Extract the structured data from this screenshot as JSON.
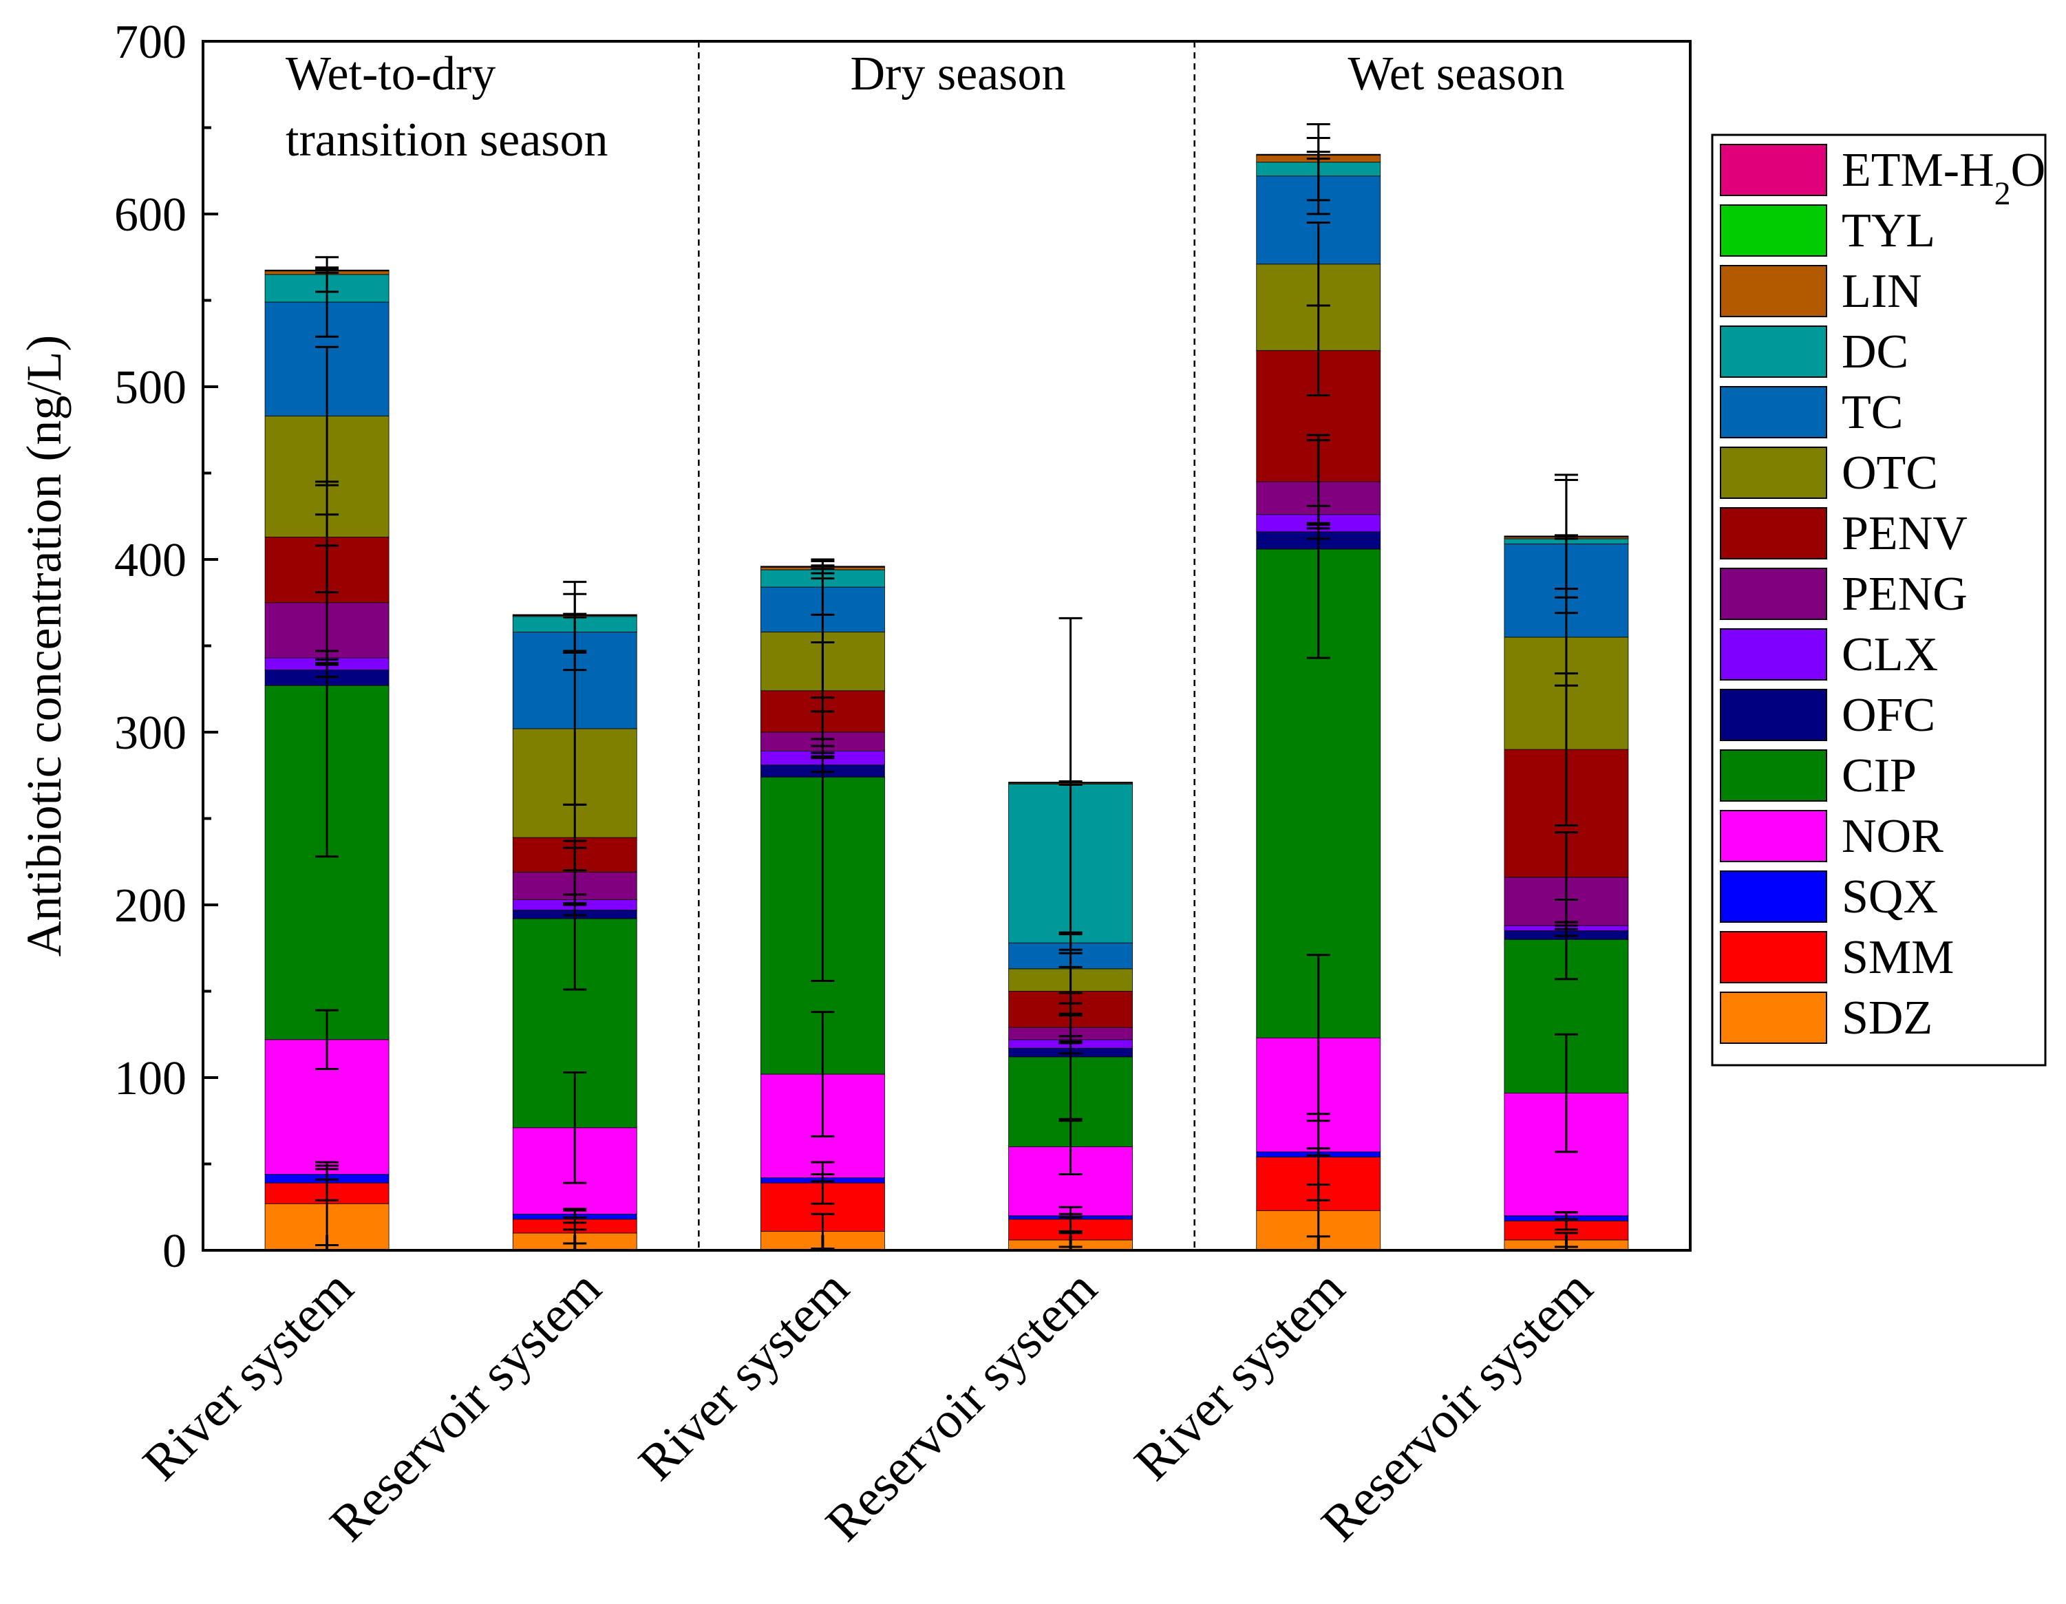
{
  "chart_data": {
    "type": "bar",
    "stacked": true,
    "title": "",
    "xlabel": "",
    "ylabel": "Antibiotic concentration (ng/L)",
    "ylim": [
      0,
      700
    ],
    "yticks": [
      0,
      100,
      200,
      300,
      400,
      500,
      600,
      700
    ],
    "grid": false,
    "legend_position": "right",
    "categories": [
      "River system",
      "Reservoir system",
      "River system",
      "Reservoir system",
      "River system",
      "Reservoir system"
    ],
    "groups": [
      {
        "label_lines": [
          "Wet-to-dry",
          "transition season"
        ],
        "categories": [
          0,
          1
        ]
      },
      {
        "label_lines": [
          "Dry season"
        ],
        "categories": [
          2,
          3
        ]
      },
      {
        "label_lines": [
          "Wet season"
        ],
        "categories": [
          4,
          5
        ]
      }
    ],
    "series": [
      {
        "name": "SDZ",
        "color": "#ff8000",
        "values": [
          27,
          10,
          11,
          6,
          23,
          6
        ],
        "error": [
          24,
          6,
          10,
          4,
          15,
          4
        ]
      },
      {
        "name": "SMM",
        "color": "#ff0000",
        "values": [
          12,
          8,
          28,
          12,
          31,
          11
        ],
        "error": [
          10,
          6,
          12,
          7,
          25,
          5
        ]
      },
      {
        "name": "SQX",
        "color": "#0000ff",
        "values": [
          5,
          3,
          3,
          2,
          3,
          3
        ],
        "error": [
          3,
          2,
          2,
          1,
          2,
          2
        ]
      },
      {
        "name": "NOR",
        "color": "#ff00ff",
        "values": [
          78,
          50,
          60,
          40,
          66,
          71
        ],
        "error": [
          17,
          32,
          36,
          16,
          48,
          34
        ]
      },
      {
        "name": "CIP",
        "color": "#008000",
        "values": [
          205,
          121,
          172,
          52,
          283,
          89
        ],
        "error": [
          99,
          41,
          118,
          37,
          63,
          23
        ]
      },
      {
        "name": "OFC",
        "color": "#000080",
        "values": [
          9,
          5,
          7,
          5,
          10,
          5
        ],
        "error": [
          4,
          3,
          4,
          3,
          4,
          3
        ]
      },
      {
        "name": "CLX",
        "color": "#8000ff",
        "values": [
          7,
          6,
          8,
          5,
          10,
          3
        ],
        "error": [
          4,
          3,
          3,
          2,
          5,
          2
        ]
      },
      {
        "name": "PENG",
        "color": "#800080",
        "values": [
          32,
          16,
          11,
          7,
          19,
          28
        ],
        "error": [
          33,
          18,
          12,
          8,
          27,
          26
        ]
      },
      {
        "name": "PENV",
        "color": "#990000",
        "values": [
          38,
          20,
          24,
          21,
          76,
          74
        ],
        "error": [
          32,
          19,
          28,
          14,
          26,
          44
        ]
      },
      {
        "name": "OTC",
        "color": "#808000",
        "values": [
          70,
          63,
          34,
          13,
          50,
          65
        ],
        "error": [
          40,
          44,
          38,
          20,
          24,
          28
        ]
      },
      {
        "name": "TC",
        "color": "#0066b3",
        "values": [
          66,
          56,
          26,
          15,
          51,
          54
        ],
        "error": [
          20,
          22,
          16,
          6,
          22,
          40
        ]
      },
      {
        "name": "DC",
        "color": "#009999",
        "values": [
          16,
          9,
          10,
          92,
          8,
          3
        ],
        "error": [
          10,
          20,
          5,
          96,
          22,
          34
        ]
      },
      {
        "name": "LIN",
        "color": "#b35900",
        "values": [
          2,
          0.5,
          1.5,
          0.5,
          4,
          1
        ],
        "error": [
          1,
          1,
          1,
          1,
          2,
          1
        ]
      },
      {
        "name": "TYL",
        "color": "#00cc00",
        "values": [
          0.3,
          0.3,
          0.3,
          0.3,
          0.3,
          0.3
        ],
        "error": [
          0,
          0,
          0,
          0,
          0,
          0
        ]
      },
      {
        "name": "ETM-H2O",
        "color": "#e0007a",
        "values": [
          0.3,
          0.3,
          0.3,
          0.3,
          0.3,
          0.3
        ],
        "error": [
          0,
          0,
          0,
          0,
          0,
          0
        ]
      }
    ]
  }
}
